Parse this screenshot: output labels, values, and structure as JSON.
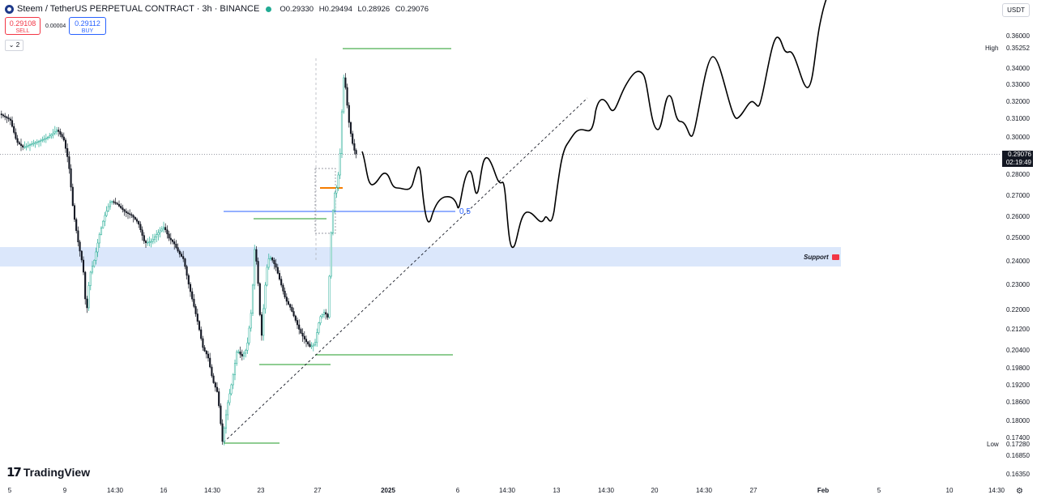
{
  "header": {
    "title": "Steem / TetherUS PERPETUAL CONTRACT · 3h · BINANCE",
    "open": "O0.29330",
    "high": "H0.29494",
    "low": "L0.28926",
    "close": "C0.29076"
  },
  "trade": {
    "sell_price": "0.29108",
    "sell_label": "SELL",
    "spread": "0.00004",
    "buy_price": "0.29112",
    "buy_label": "BUY"
  },
  "indicators_count": "2",
  "currency": "USDT",
  "brand": "TradingView",
  "annotations": {
    "support_label": "Support",
    "fib_label": "0.5",
    "high_label": "High",
    "high_value": "0.35252",
    "low_label": "Low",
    "low_value": "0.17280",
    "current_price": "0.29076",
    "countdown": "02:19:49"
  },
  "colors": {
    "up": "#22ab94",
    "down": "#131722",
    "support_zone": "#dbe7fb",
    "level_line": "#4caf50",
    "fib_line": "#2962ff",
    "projection": "#000000"
  },
  "chart_data": {
    "type": "candlestick",
    "y_ticks": [
      "0.36000",
      "0.34000",
      "0.33000",
      "0.32000",
      "0.31000",
      "0.30000",
      "0.28000",
      "0.27000",
      "0.26000",
      "0.25000",
      "0.24000",
      "0.23000",
      "0.22000",
      "0.21200",
      "0.20400",
      "0.19800",
      "0.19200",
      "0.18600",
      "0.18000",
      "0.17400",
      "0.16850",
      "0.16350"
    ],
    "x_ticks": [
      "5",
      "9",
      "14:30",
      "16",
      "14:30",
      "23",
      "27",
      "2025",
      "6",
      "14:30",
      "13",
      "14:30",
      "20",
      "14:30",
      "27",
      "Feb",
      "5",
      "10",
      "14:30"
    ]
  }
}
